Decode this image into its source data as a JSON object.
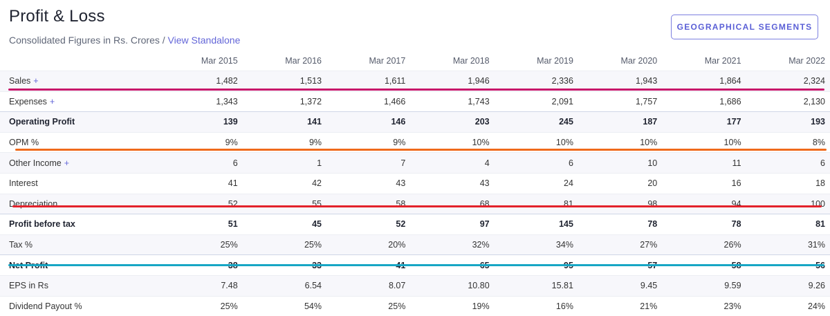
{
  "header": {
    "title": "Profit & Loss",
    "subtitle": "Consolidated Figures in Rs. Crores / ",
    "standalone_link": "View Standalone",
    "geo_button": "GEOGRAPHICAL SEGMENTS"
  },
  "table": {
    "columns": [
      "Mar 2015",
      "Mar 2016",
      "Mar 2017",
      "Mar 2018",
      "Mar 2019",
      "Mar 2020",
      "Mar 2021",
      "Mar 2022"
    ],
    "rows": [
      {
        "label": "Sales",
        "expandable": true,
        "bold": false,
        "sep": false,
        "values": [
          "1,482",
          "1,513",
          "1,611",
          "1,946",
          "2,336",
          "1,943",
          "1,864",
          "2,324"
        ]
      },
      {
        "label": "Expenses",
        "expandable": true,
        "bold": false,
        "sep": false,
        "values": [
          "1,343",
          "1,372",
          "1,466",
          "1,743",
          "2,091",
          "1,757",
          "1,686",
          "2,130"
        ]
      },
      {
        "label": "Operating Profit",
        "expandable": false,
        "bold": true,
        "sep": true,
        "values": [
          "139",
          "141",
          "146",
          "203",
          "245",
          "187",
          "177",
          "193"
        ]
      },
      {
        "label": "OPM %",
        "expandable": false,
        "bold": false,
        "sep": false,
        "values": [
          "9%",
          "9%",
          "9%",
          "10%",
          "10%",
          "10%",
          "10%",
          "8%"
        ]
      },
      {
        "label": "Other Income",
        "expandable": true,
        "bold": false,
        "sep": false,
        "values": [
          "6",
          "1",
          "7",
          "4",
          "6",
          "10",
          "11",
          "6"
        ]
      },
      {
        "label": "Interest",
        "expandable": false,
        "bold": false,
        "sep": false,
        "values": [
          "41",
          "42",
          "43",
          "43",
          "24",
          "20",
          "16",
          "18"
        ]
      },
      {
        "label": "Depreciation",
        "expandable": false,
        "bold": false,
        "sep": false,
        "values": [
          "52",
          "55",
          "58",
          "68",
          "81",
          "98",
          "94",
          "100"
        ]
      },
      {
        "label": "Profit before tax",
        "expandable": false,
        "bold": true,
        "sep": true,
        "values": [
          "51",
          "45",
          "52",
          "97",
          "145",
          "78",
          "78",
          "81"
        ]
      },
      {
        "label": "Tax %",
        "expandable": false,
        "bold": false,
        "sep": false,
        "values": [
          "25%",
          "25%",
          "20%",
          "32%",
          "34%",
          "27%",
          "26%",
          "31%"
        ]
      },
      {
        "label": "Net Profit",
        "expandable": false,
        "bold": true,
        "sep": true,
        "values": [
          "38",
          "33",
          "41",
          "65",
          "95",
          "57",
          "58",
          "56"
        ]
      },
      {
        "label": "EPS in Rs",
        "expandable": false,
        "bold": false,
        "sep": false,
        "values": [
          "7.48",
          "6.54",
          "8.07",
          "10.80",
          "15.81",
          "9.45",
          "9.59",
          "9.26"
        ]
      },
      {
        "label": "Dividend Payout %",
        "expandable": false,
        "bold": false,
        "sep": false,
        "values": [
          "25%",
          "54%",
          "25%",
          "19%",
          "16%",
          "21%",
          "23%",
          "24%"
        ]
      }
    ],
    "expand_symbol": "+"
  },
  "highlights": {
    "sales_color": "#c8176a",
    "opm_color": "#ef6a1c",
    "depreciation_color": "#e3222b",
    "net_profit_color": "#17a6c4"
  }
}
